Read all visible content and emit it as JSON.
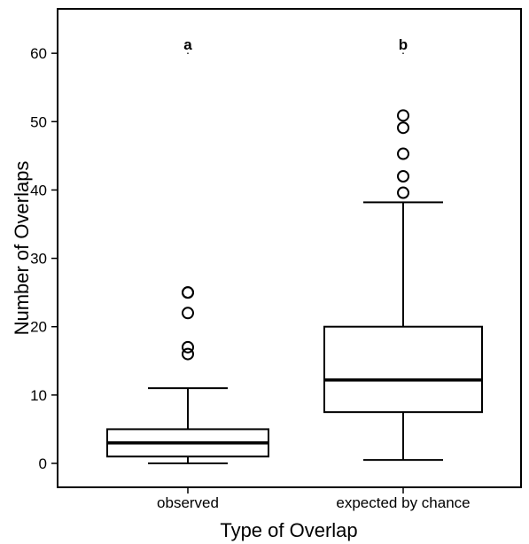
{
  "chart_data": {
    "type": "box",
    "xlabel": "Type of Overlap",
    "ylabel": "Number of Overlaps",
    "ylim": [
      -3.5,
      66.5
    ],
    "yticks": [
      0,
      10,
      20,
      30,
      40,
      50,
      60
    ],
    "grid": false,
    "categories": [
      "observed",
      "expected by chance"
    ],
    "boxes": [
      {
        "category": "observed",
        "min": 0,
        "q1": 1,
        "median": 3,
        "q3": 5,
        "max": 11,
        "outliers": [
          16,
          17,
          22,
          25,
          25
        ],
        "significance_letter": "a"
      },
      {
        "category": "expected by chance",
        "min": 0.5,
        "q1": 7.5,
        "median": 12.2,
        "q3": 20,
        "max": 38.2,
        "outliers": [
          39.6,
          42,
          45.3,
          49.1,
          50.9
        ],
        "significance_letter": "b"
      }
    ]
  }
}
